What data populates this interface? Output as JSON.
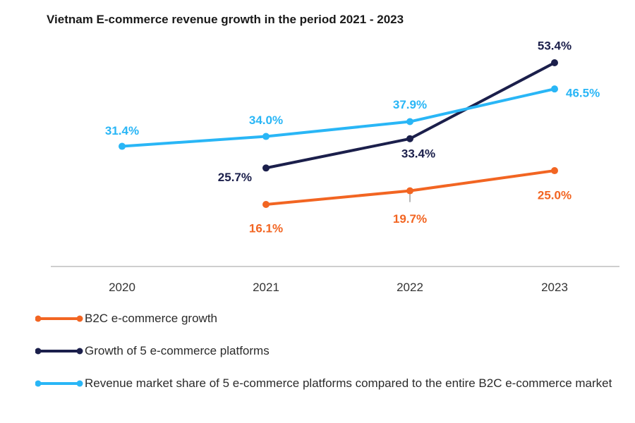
{
  "chart_data": {
    "type": "line",
    "title": "Vietnam E-commerce revenue growth in the period 2021 - 2023",
    "xlabel": "",
    "ylabel": "",
    "categories": [
      "2020",
      "2021",
      "2022",
      "2023"
    ],
    "ylim": [
      0,
      60
    ],
    "grid": false,
    "legend_position": "bottom",
    "series": [
      {
        "name": "B2C e-commerce growth",
        "color": "#f26522",
        "values": [
          null,
          16.1,
          19.7,
          25.0
        ],
        "labels": [
          "",
          "16.1%",
          "19.7%",
          "25.0%"
        ]
      },
      {
        "name": "Growth of 5 e-commerce platforms",
        "color": "#1b1f4b",
        "values": [
          null,
          25.7,
          33.4,
          53.4
        ],
        "labels": [
          "",
          "25.7%",
          "33.4%",
          "53.4%"
        ]
      },
      {
        "name": "Revenue market share of 5 e-commerce platforms compared to the entire B2C e-commerce market",
        "color": "#29b6f6",
        "values": [
          31.4,
          34.0,
          37.9,
          46.5
        ],
        "labels": [
          "31.4%",
          "34.0%",
          "37.9%",
          "46.5%"
        ]
      }
    ]
  }
}
